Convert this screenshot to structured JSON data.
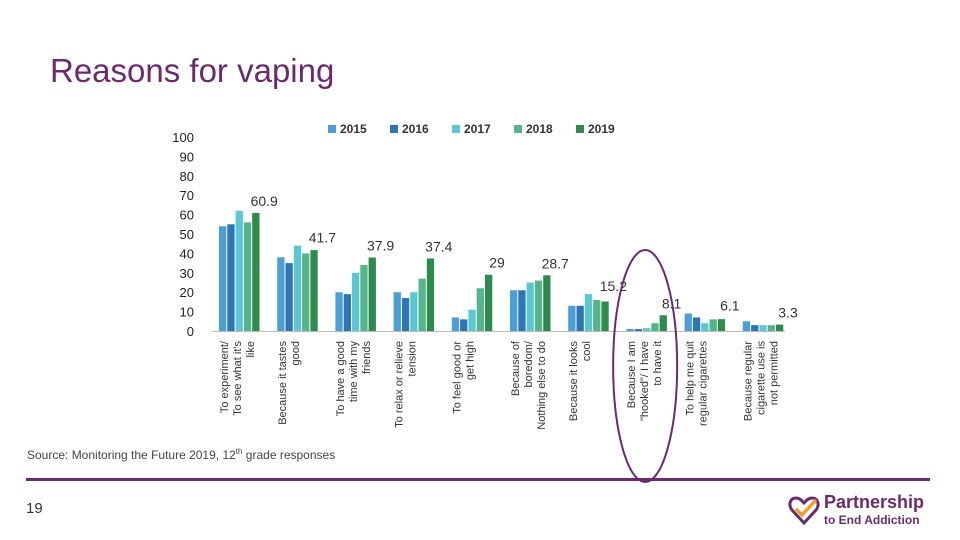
{
  "slide": {
    "title": "Reasons for vaping",
    "source_prefix": "Source: Monitoring the Future 2019, 12",
    "source_sup": "th",
    "source_suffix": " grade responses",
    "page_number": "19",
    "logo_line1": "Partnership",
    "logo_line2": "to End Addiction",
    "accent_color": "#6b2a6e"
  },
  "chart_data": {
    "type": "bar",
    "title": "",
    "xlabel": "",
    "ylabel": "",
    "ylim": [
      0,
      100
    ],
    "yticks": [
      0,
      10,
      20,
      30,
      40,
      50,
      60,
      70,
      80,
      90,
      100
    ],
    "legend_position": "top",
    "highlighted_category_index": 7,
    "categories": [
      [
        "To experiment/",
        "To see what it's",
        "like"
      ],
      [
        "Because it tastes",
        "good"
      ],
      [
        "To have a good",
        "time with my",
        "friends"
      ],
      [
        "To relax or relieve",
        "tension"
      ],
      [
        "To feel good or",
        "get high"
      ],
      [
        "Because of",
        "boredom/",
        "Nothing else to do"
      ],
      [
        "Because it looks",
        "cool"
      ],
      [
        "Because I am",
        "\"hooked\"/ I have",
        "to have it"
      ],
      [
        "To help me quit",
        "regular cigarettes"
      ],
      [
        "Because regular",
        "cigarette use is",
        "not permitted"
      ]
    ],
    "series": [
      {
        "name": "2015",
        "color": "#4a9fd8",
        "values": [
          54,
          38,
          20,
          20,
          7,
          21,
          13,
          1,
          9,
          5
        ]
      },
      {
        "name": "2016",
        "color": "#2e75b6",
        "values": [
          55,
          35,
          19,
          17,
          6,
          21,
          13,
          1,
          7,
          3
        ]
      },
      {
        "name": "2017",
        "color": "#5bc7d3",
        "values": [
          62,
          44,
          30,
          20,
          11,
          25,
          19,
          1.5,
          4,
          3
        ]
      },
      {
        "name": "2018",
        "color": "#53b589",
        "values": [
          56,
          40,
          34,
          27,
          22,
          26,
          16,
          4,
          6,
          3
        ]
      },
      {
        "name": "2019",
        "color": "#2e8b4e",
        "values": [
          60.9,
          41.7,
          37.9,
          37.4,
          29,
          28.7,
          15.2,
          8.1,
          6.1,
          3.3
        ]
      }
    ],
    "data_labels": [
      "60.9",
      "41.7",
      "37.9",
      "37.4",
      "29",
      "28.7",
      "15.2",
      "8.1",
      "6.1",
      "3.3"
    ]
  }
}
